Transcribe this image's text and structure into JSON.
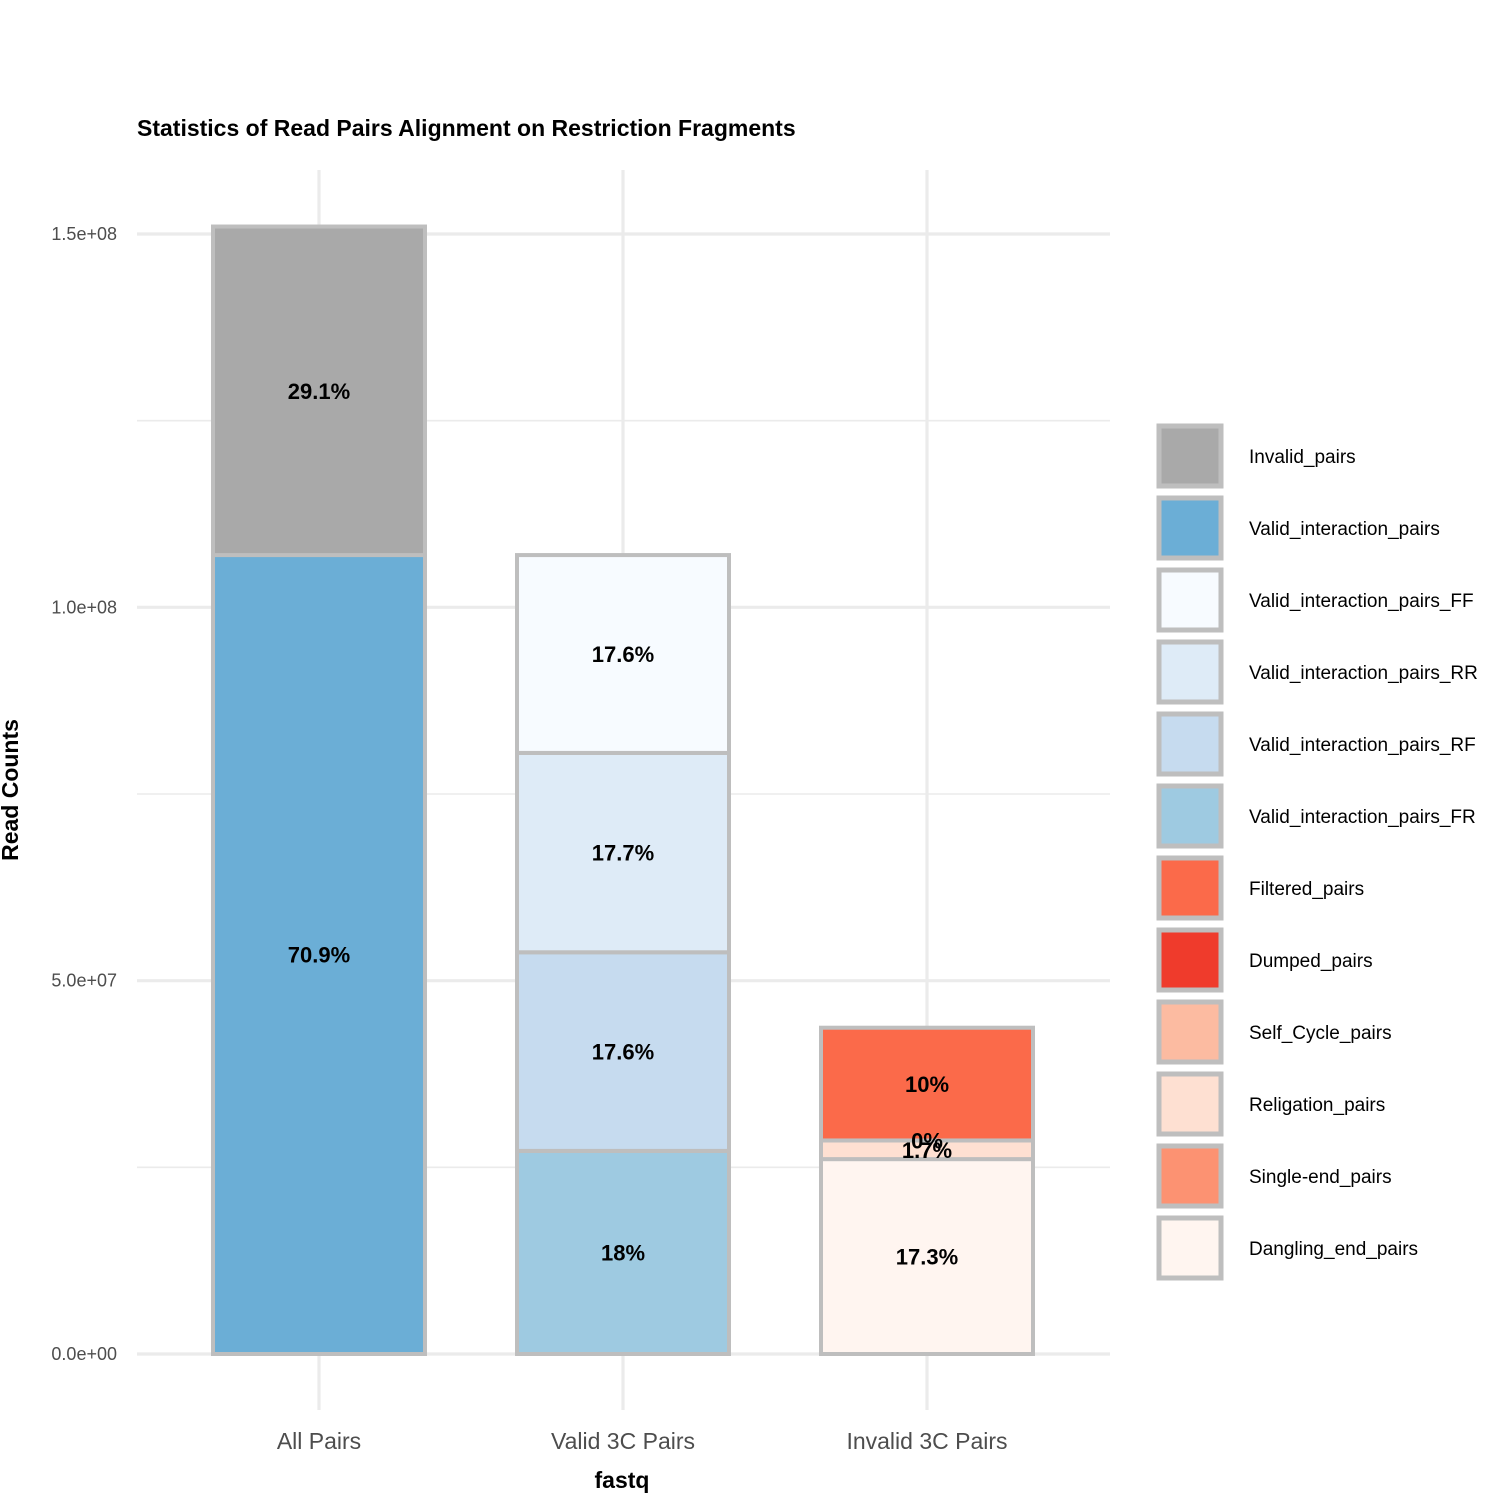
{
  "chart_data": {
    "type": "bar",
    "stacked": true,
    "title": "Statistics of Read Pairs Alignment on Restriction Fragments",
    "xlabel": "fastq",
    "ylabel": "Read Counts",
    "ylim": [
      -7000000,
      160000000
    ],
    "yticks": [
      {
        "value": 0,
        "label": "0.0e+00"
      },
      {
        "value": 50000000,
        "label": "5.0e+07"
      },
      {
        "value": 100000000,
        "label": "1.0e+08"
      },
      {
        "value": 150000000,
        "label": "1.5e+08"
      }
    ],
    "categories": [
      "All Pairs",
      "Valid 3C Pairs",
      "Invalid 3C Pairs"
    ],
    "stacks": [
      {
        "category": "All Pairs",
        "segments": [
          {
            "series": "Valid_interaction_pairs",
            "value": 107000000,
            "label": "70.9%"
          },
          {
            "series": "Invalid_pairs",
            "value": 44000000,
            "label": "29.1%"
          }
        ]
      },
      {
        "category": "Valid 3C Pairs",
        "segments": [
          {
            "series": "Valid_interaction_pairs_FR",
            "value": 27200000,
            "label": "18%"
          },
          {
            "series": "Valid_interaction_pairs_RF",
            "value": 26600000,
            "label": "17.6%"
          },
          {
            "series": "Valid_interaction_pairs_RR",
            "value": 26700000,
            "label": "17.7%"
          },
          {
            "series": "Valid_interaction_pairs_FF",
            "value": 26500000,
            "label": "17.6%"
          }
        ]
      },
      {
        "category": "Invalid 3C Pairs",
        "segments": [
          {
            "series": "Dangling_end_pairs",
            "value": 26100000,
            "label": "17.3%"
          },
          {
            "series": "Religation_pairs",
            "value": 2500000,
            "label": "1.7%"
          },
          {
            "series": "Self_Cycle_pairs",
            "value": 0,
            "label": "0%"
          },
          {
            "series": "Filtered_pairs",
            "value": 15100000,
            "label": "10%"
          }
        ]
      }
    ],
    "legend": {
      "position": "right",
      "items": [
        {
          "name": "Invalid_pairs",
          "color": "#a9a9a9"
        },
        {
          "name": "Valid_interaction_pairs",
          "color": "#6baed6"
        },
        {
          "name": "Valid_interaction_pairs_FF",
          "color": "#f7fbff"
        },
        {
          "name": "Valid_interaction_pairs_RR",
          "color": "#deebf7"
        },
        {
          "name": "Valid_interaction_pairs_RF",
          "color": "#c6dbef"
        },
        {
          "name": "Valid_interaction_pairs_FR",
          "color": "#9ecae1"
        },
        {
          "name": "Filtered_pairs",
          "color": "#fb6a4a"
        },
        {
          "name": "Dumped_pairs",
          "color": "#ef3b2c"
        },
        {
          "name": "Self_Cycle_pairs",
          "color": "#fcbba1"
        },
        {
          "name": "Religation_pairs",
          "color": "#fee0d2"
        },
        {
          "name": "Single-end_pairs",
          "color": "#fc9272"
        },
        {
          "name": "Dangling_end_pairs",
          "color": "#fff5f0"
        }
      ]
    },
    "grid": true,
    "border_color": "#bebebe"
  }
}
